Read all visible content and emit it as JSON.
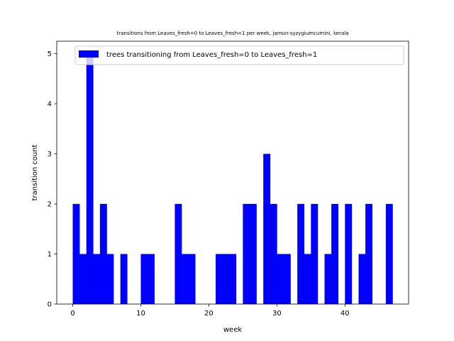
{
  "chart_data": {
    "type": "bar",
    "title": "transitions from Leaves_fresh=0 to Leaves_fresh=1 per week, jamun-syzygiumcumini, kerala",
    "xlabel": "week",
    "ylabel": "transition count",
    "xlim": [
      -2.35,
      49.35
    ],
    "ylim": [
      0,
      5.25
    ],
    "xticks": [
      0,
      10,
      20,
      30,
      40
    ],
    "yticks": [
      0,
      1,
      2,
      3,
      4,
      5
    ],
    "legend_position": "top-right",
    "bar_color": "#0000ff",
    "series": [
      {
        "name": "trees transitioning from Leaves_fresh=0 to Leaves_fresh=1",
        "points": [
          {
            "week": 0,
            "count": 2
          },
          {
            "week": 1,
            "count": 1
          },
          {
            "week": 2,
            "count": 5
          },
          {
            "week": 3,
            "count": 1
          },
          {
            "week": 4,
            "count": 2
          },
          {
            "week": 5,
            "count": 1
          },
          {
            "week": 7,
            "count": 1
          },
          {
            "week": 10,
            "count": 1
          },
          {
            "week": 11,
            "count": 1
          },
          {
            "week": 15,
            "count": 2
          },
          {
            "week": 16,
            "count": 1
          },
          {
            "week": 17,
            "count": 1
          },
          {
            "week": 21,
            "count": 1
          },
          {
            "week": 22,
            "count": 1
          },
          {
            "week": 23,
            "count": 1
          },
          {
            "week": 25,
            "count": 2
          },
          {
            "week": 26,
            "count": 2
          },
          {
            "week": 28,
            "count": 3
          },
          {
            "week": 29,
            "count": 2
          },
          {
            "week": 30,
            "count": 1
          },
          {
            "week": 31,
            "count": 1
          },
          {
            "week": 33,
            "count": 2
          },
          {
            "week": 34,
            "count": 1
          },
          {
            "week": 35,
            "count": 2
          },
          {
            "week": 37,
            "count": 1
          },
          {
            "week": 38,
            "count": 2
          },
          {
            "week": 40,
            "count": 2
          },
          {
            "week": 42,
            "count": 1
          },
          {
            "week": 43,
            "count": 2
          },
          {
            "week": 46,
            "count": 2
          }
        ]
      }
    ]
  }
}
